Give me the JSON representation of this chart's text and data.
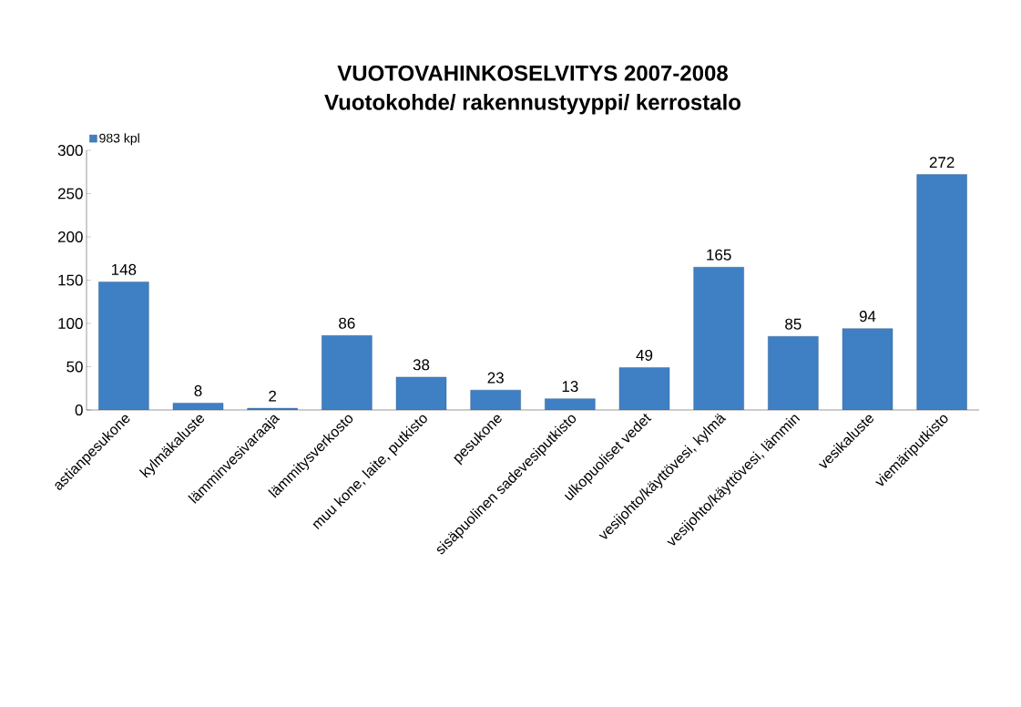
{
  "chart_data": {
    "type": "bar",
    "title": "VUOTOVAHINKOSELVITYS 2007-2008",
    "subtitle": "Vuotokohde/ rakennustyyppi/ kerrostalo",
    "categories": [
      "astianpesukone",
      "kylmäkaluste",
      "lämminvesivaraaja",
      "lämmitysverkosto",
      "muu kone, laite, putkisto",
      "pesukone",
      "sisäpuolinen sadevesiputkisto",
      "ulkopuoliset vedet",
      "vesijohto/käyttövesi, kylmä",
      "vesijohto/käyttövesi, lämmin",
      "vesikaluste",
      "viemäriputkisto"
    ],
    "series": [
      {
        "name": "983 kpl",
        "color": "#3f7fc4",
        "values": [
          148,
          8,
          2,
          86,
          38,
          23,
          13,
          49,
          165,
          85,
          94,
          272
        ]
      }
    ],
    "ylim": [
      0,
      300
    ],
    "yticks": [
      0,
      50,
      100,
      150,
      200,
      250,
      300
    ],
    "data_labels": true,
    "legend": "top left",
    "grid": false
  }
}
